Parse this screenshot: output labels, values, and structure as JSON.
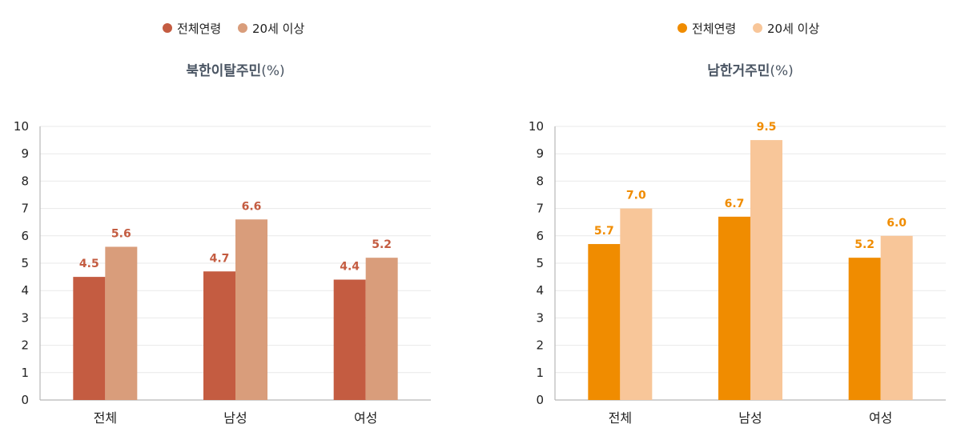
{
  "chart_data": [
    {
      "type": "bar",
      "title": "북한이탈주민",
      "title_unit": "(%)",
      "categories": [
        "전체",
        "남성",
        "여성"
      ],
      "series": [
        {
          "name": "전체연령",
          "values": [
            4.5,
            4.7,
            4.4
          ],
          "color": "#c45c41"
        },
        {
          "name": "20세 이상",
          "values": [
            5.6,
            6.6,
            5.2
          ],
          "color": "#d99d7b"
        }
      ],
      "data_label_color": "#c45c41",
      "ylim": [
        0,
        10
      ],
      "yticks": [
        0,
        1,
        2,
        3,
        4,
        5,
        6,
        7,
        8,
        9,
        10
      ],
      "grid": true,
      "legend": "top-center"
    },
    {
      "type": "bar",
      "title": "남한거주민",
      "title_unit": "(%)",
      "categories": [
        "전체",
        "남성",
        "여성"
      ],
      "series": [
        {
          "name": "전체연령",
          "values": [
            5.7,
            6.7,
            5.2
          ],
          "color": "#f08c00"
        },
        {
          "name": "20세 이상",
          "values": [
            7.0,
            9.5,
            6.0
          ],
          "color": "#f8c699"
        }
      ],
      "data_label_color": "#f08c00",
      "ylim": [
        0,
        10
      ],
      "yticks": [
        0,
        1,
        2,
        3,
        4,
        5,
        6,
        7,
        8,
        9,
        10
      ],
      "grid": true,
      "legend": "top-center"
    }
  ]
}
